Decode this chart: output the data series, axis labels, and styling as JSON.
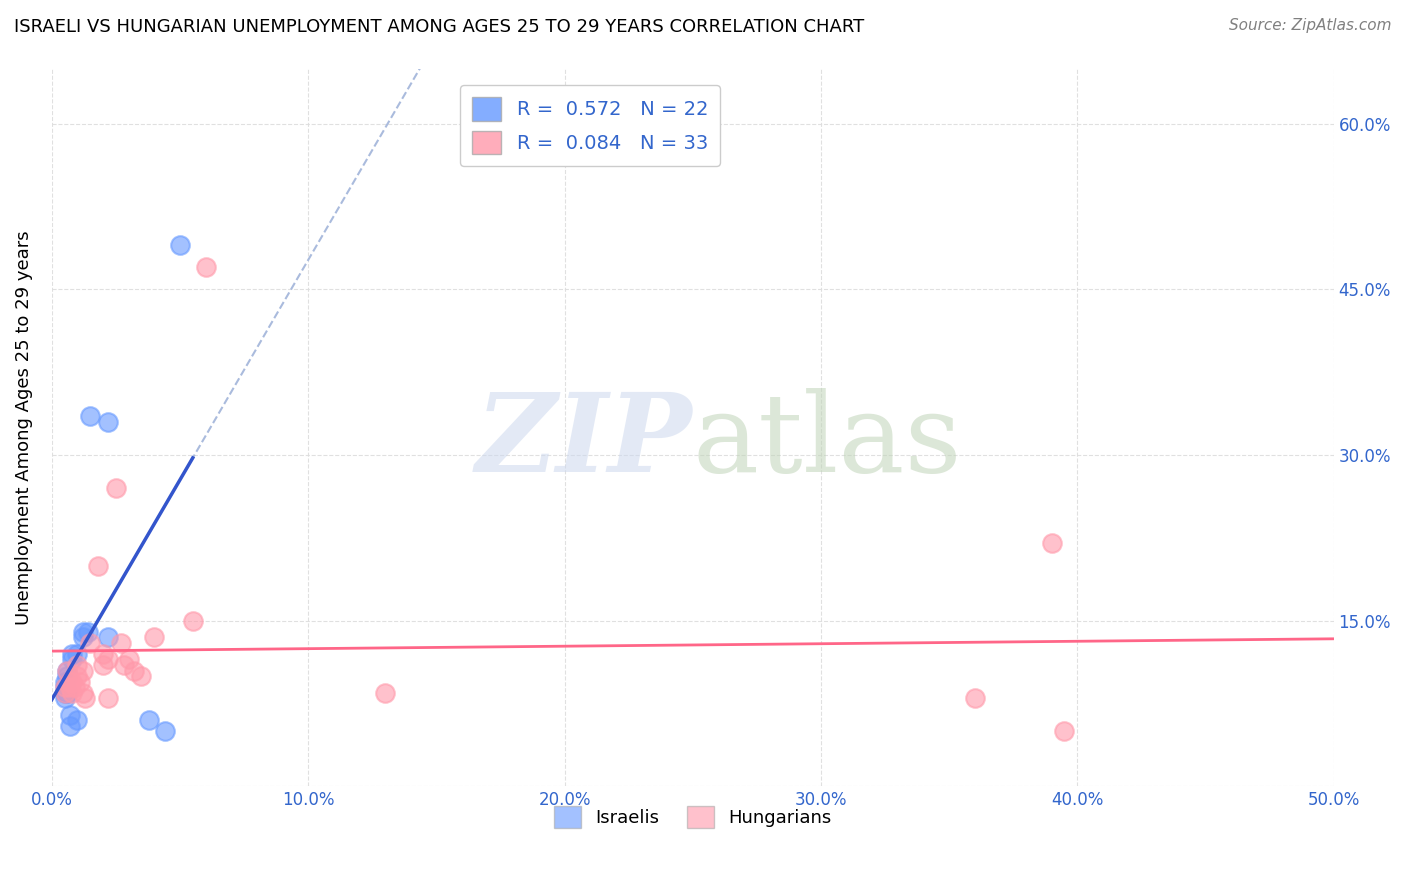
{
  "title": "ISRAELI VS HUNGARIAN UNEMPLOYMENT AMONG AGES 25 TO 29 YEARS CORRELATION CHART",
  "source": "Source: ZipAtlas.com",
  "ylabel_label": "Unemployment Among Ages 25 to 29 years",
  "xlim": [
    0.0,
    0.5
  ],
  "ylim": [
    0.0,
    0.65
  ],
  "xticks": [
    0.0,
    0.1,
    0.2,
    0.3,
    0.4,
    0.5
  ],
  "xticklabels": [
    "0.0%",
    "10.0%",
    "20.0%",
    "30.0%",
    "40.0%",
    "50.0%"
  ],
  "yticks": [
    0.0,
    0.15,
    0.3,
    0.45,
    0.6
  ],
  "yticklabels_right": [
    "",
    "15.0%",
    "30.0%",
    "45.0%",
    "60.0%"
  ],
  "israel_color": "#6699ff",
  "hungary_color": "#ff99aa",
  "israel_line_color": "#3355cc",
  "hungary_line_color": "#ff6688",
  "israel_R": 0.572,
  "israel_N": 22,
  "hungary_R": 0.084,
  "hungary_N": 33,
  "israelis_x": [
    0.005,
    0.005,
    0.005,
    0.005,
    0.006,
    0.006,
    0.006,
    0.007,
    0.007,
    0.008,
    0.008,
    0.01,
    0.01,
    0.012,
    0.012,
    0.014,
    0.015,
    0.022,
    0.022,
    0.038,
    0.044,
    0.05
  ],
  "israelis_y": [
    0.08,
    0.085,
    0.09,
    0.095,
    0.1,
    0.105,
    0.085,
    0.065,
    0.055,
    0.12,
    0.115,
    0.12,
    0.06,
    0.14,
    0.135,
    0.14,
    0.335,
    0.33,
    0.135,
    0.06,
    0.05,
    0.49
  ],
  "hungarians_x": [
    0.005,
    0.005,
    0.006,
    0.007,
    0.007,
    0.008,
    0.008,
    0.009,
    0.01,
    0.01,
    0.011,
    0.012,
    0.012,
    0.013,
    0.015,
    0.018,
    0.02,
    0.02,
    0.022,
    0.022,
    0.025,
    0.027,
    0.028,
    0.03,
    0.032,
    0.035,
    0.04,
    0.055,
    0.06,
    0.13,
    0.36,
    0.39,
    0.395
  ],
  "hungarians_y": [
    0.085,
    0.09,
    0.105,
    0.09,
    0.095,
    0.085,
    0.095,
    0.09,
    0.1,
    0.11,
    0.095,
    0.105,
    0.085,
    0.08,
    0.13,
    0.2,
    0.12,
    0.11,
    0.115,
    0.08,
    0.27,
    0.13,
    0.11,
    0.115,
    0.105,
    0.1,
    0.135,
    0.15,
    0.47,
    0.085,
    0.08,
    0.22,
    0.05
  ],
  "background_color": "#ffffff",
  "grid_color": "#dddddd"
}
